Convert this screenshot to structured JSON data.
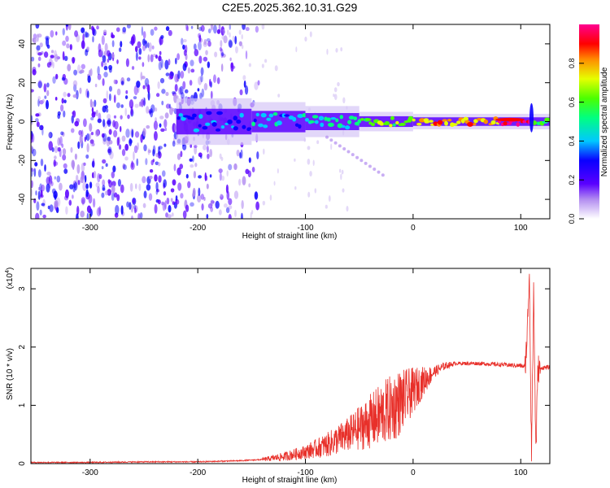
{
  "title": "C2E5.2025.362.10.31.G29",
  "colors": {
    "snr_line": "#e8302a",
    "axis": "#000000",
    "background": "#ffffff"
  },
  "chart_data": [
    {
      "type": "heatmap",
      "name": "spectrogram",
      "xlabel": "Height of straight line (km)",
      "ylabel": "Frequency (Hz)",
      "xlim": [
        -355,
        127
      ],
      "ylim": [
        -50,
        50
      ],
      "xticks": [
        -300,
        -200,
        -100,
        0,
        100
      ],
      "yticks": [
        -40,
        -20,
        0,
        20,
        40
      ],
      "colorbar": {
        "label": "Normalized spectral amplitude",
        "range": [
          0,
          1
        ],
        "ticks": [
          0.0,
          0.2,
          0.4,
          0.6,
          0.8
        ],
        "colormap": [
          "#ffffff",
          "#7b1fe0",
          "#0000ff",
          "#00dcff",
          "#00ff3c",
          "#d8ff00",
          "#ff9900",
          "#ff0000",
          "#ff0080"
        ]
      },
      "signal_band": {
        "center_freq_hz": 0,
        "onset_height_km": -220,
        "segments": [
          {
            "x": [
              -220,
              -150
            ],
            "width_hz": 12,
            "amplitude": 0.3
          },
          {
            "x": [
              -150,
              -100
            ],
            "width_hz": 10,
            "amplitude": 0.35
          },
          {
            "x": [
              -100,
              -50
            ],
            "width_hz": 8,
            "amplitude": 0.4
          },
          {
            "x": [
              -50,
              0
            ],
            "width_hz": 5,
            "amplitude": 0.6
          },
          {
            "x": [
              0,
              80
            ],
            "width_hz": 4,
            "amplitude": 0.75
          },
          {
            "x": [
              80,
              110
            ],
            "width_hz": 4,
            "amplitude": 0.95
          },
          {
            "x": [
              110,
              127
            ],
            "width_hz": 4,
            "amplitude": 0.55
          }
        ],
        "noise_region_km": [
          -355,
          -180
        ]
      }
    },
    {
      "type": "line",
      "name": "snr",
      "xlabel": "Height of straight line (km)",
      "ylabel": "SNR (10 * v/v)",
      "yscale_label": "(x10",
      "yscale_exp": "4",
      "xlim": [
        -355,
        127
      ],
      "ylim": [
        0,
        3.35
      ],
      "xticks": [
        -300,
        -200,
        -100,
        0,
        100
      ],
      "yticks": [
        0,
        1,
        2,
        3
      ],
      "xtick_labels": [
        "-300",
        "-200",
        "-100",
        "0",
        "100"
      ],
      "ytick_labels": [
        "0",
        "1",
        "2",
        "3"
      ],
      "series": [
        {
          "name": "SNR",
          "x": [
            -355,
            -300,
            -250,
            -200,
            -180,
            -160,
            -140,
            -120,
            -100,
            -80,
            -60,
            -40,
            -20,
            -10,
            0,
            10,
            20,
            30,
            40,
            60,
            80,
            100,
            104,
            106,
            108,
            110,
            112,
            114,
            116,
            118,
            120,
            127
          ],
          "y": [
            0.02,
            0.02,
            0.03,
            0.03,
            0.04,
            0.05,
            0.07,
            0.12,
            0.2,
            0.32,
            0.5,
            0.72,
            0.95,
            1.08,
            1.25,
            1.42,
            1.58,
            1.68,
            1.72,
            1.72,
            1.7,
            1.68,
            1.66,
            2.2,
            3.3,
            0.2,
            3.0,
            0.2,
            1.65,
            1.6,
            1.65,
            1.65
          ],
          "noise_envelope": [
            {
              "x": -140,
              "amp": 0.03
            },
            {
              "x": -100,
              "amp": 0.12
            },
            {
              "x": -60,
              "amp": 0.3
            },
            {
              "x": -30,
              "amp": 0.55
            },
            {
              "x": -15,
              "amp": 0.6
            },
            {
              "x": 0,
              "amp": 0.4
            },
            {
              "x": 20,
              "amp": 0.1
            },
            {
              "x": 40,
              "amp": 0.03
            },
            {
              "x": 100,
              "amp": 0.04
            }
          ]
        }
      ]
    }
  ]
}
